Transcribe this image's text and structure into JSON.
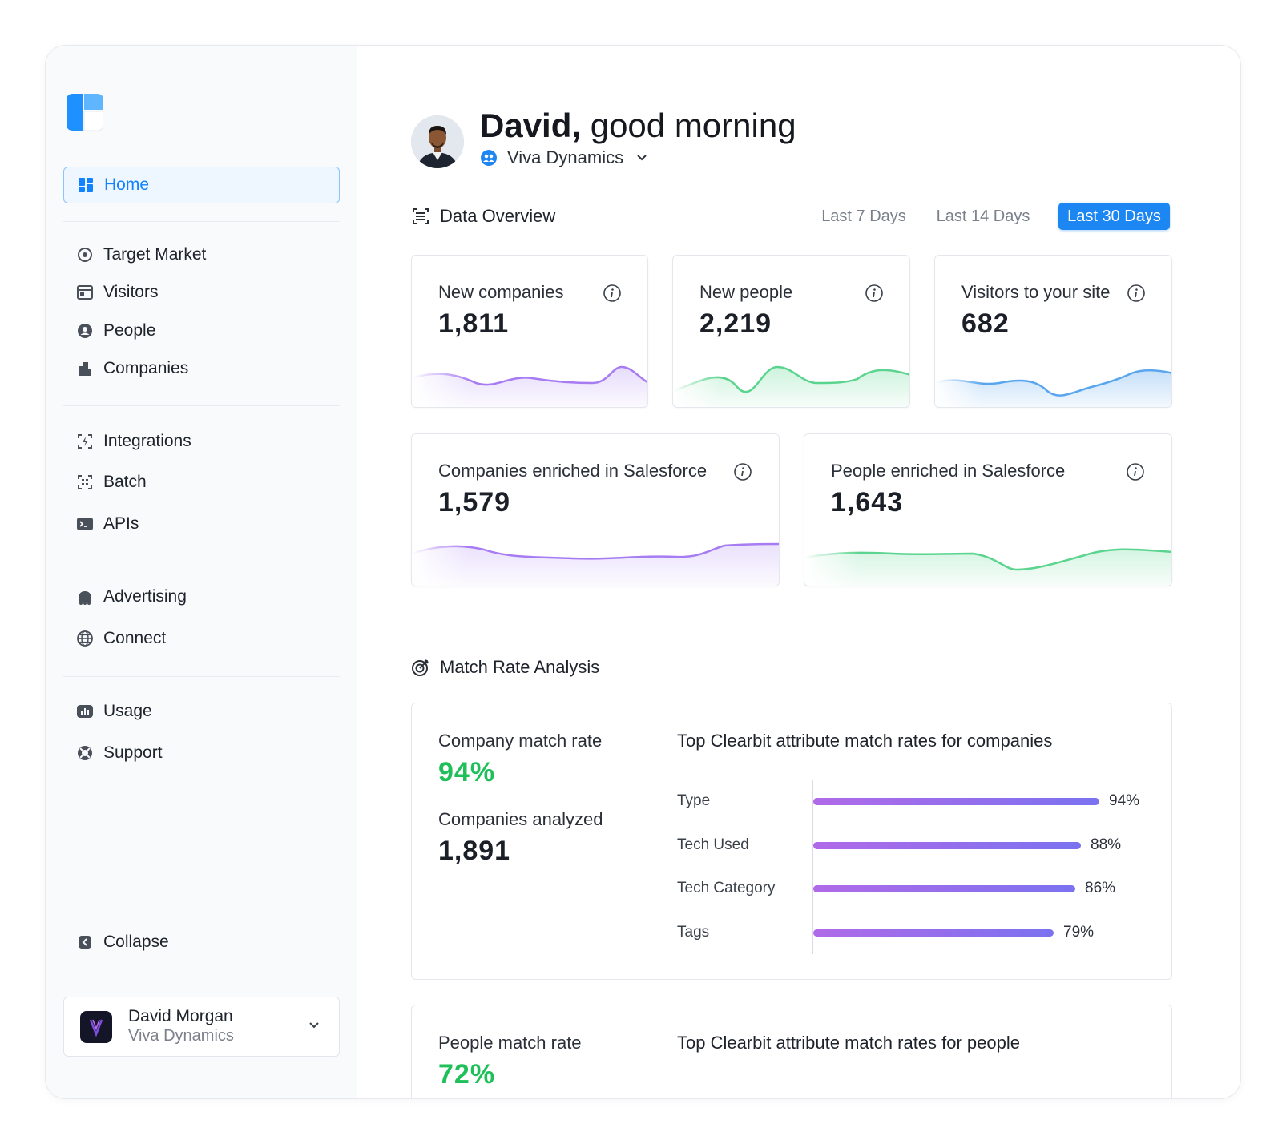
{
  "sidebar": {
    "nav": [
      {
        "label": "Home",
        "icon": "grid-icon",
        "active": true
      },
      {
        "label": "Target Market",
        "icon": "target-market-icon"
      },
      {
        "label": "Visitors",
        "icon": "visitors-icon"
      },
      {
        "label": "People",
        "icon": "people-icon"
      },
      {
        "label": "Companies",
        "icon": "companies-icon"
      },
      {
        "label": "Integrations",
        "icon": "integrations-icon"
      },
      {
        "label": "Batch",
        "icon": "batch-icon"
      },
      {
        "label": "APIs",
        "icon": "terminal-icon"
      },
      {
        "label": "Advertising",
        "icon": "advertising-icon"
      },
      {
        "label": "Connect",
        "icon": "globe-icon"
      },
      {
        "label": "Usage",
        "icon": "usage-icon"
      },
      {
        "label": "Support",
        "icon": "support-icon"
      }
    ],
    "collapse_label": "Collapse",
    "user": {
      "name": "David Morgan",
      "org": "Viva Dynamics"
    }
  },
  "header": {
    "name": "David,",
    "greeting": "good morning",
    "org": "Viva Dynamics"
  },
  "overview": {
    "title": "Data Overview",
    "ranges": [
      "Last 7 Days",
      "Last 14 Days",
      "Last 30 Days"
    ],
    "active_range": "Last 30 Days",
    "cards": [
      {
        "label": "New companies",
        "value": "1,811",
        "color": "#a77cf2"
      },
      {
        "label": "New people",
        "value": "2,219",
        "color": "#5ad48e"
      },
      {
        "label": "Visitors to your site",
        "value": "682",
        "color": "#5aa6ee"
      },
      {
        "label": "Companies enriched in Salesforce",
        "value": "1,579",
        "color": "#a77cf2"
      },
      {
        "label": "People enriched in Salesforce",
        "value": "1,643",
        "color": "#5ad48e"
      }
    ]
  },
  "match": {
    "title": "Match Rate Analysis",
    "company": {
      "rate_label": "Company match rate",
      "rate": "94%",
      "analyzed_label": "Companies analyzed",
      "analyzed": "1,891",
      "chart_title": "Top Clearbit attribute match rates for companies"
    },
    "people": {
      "rate_label": "People match rate",
      "rate": "72%",
      "chart_title": "Top Clearbit attribute match rates for people"
    },
    "accent": "#1fbf5a"
  },
  "chart_data": {
    "type": "bar",
    "orientation": "horizontal",
    "title": "Top Clearbit attribute match rates for companies",
    "categories": [
      "Type",
      "Tech Used",
      "Tech Category",
      "Tags"
    ],
    "values": [
      94,
      88,
      86,
      79
    ],
    "value_labels": [
      "94%",
      "88%",
      "86%",
      "79%"
    ],
    "xlim": [
      0,
      100
    ],
    "grid": false
  }
}
